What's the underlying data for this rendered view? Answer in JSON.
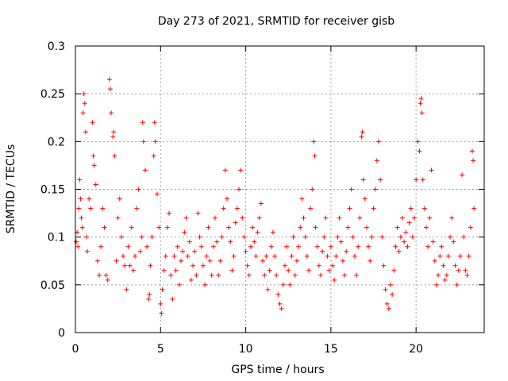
{
  "chart_data": {
    "type": "scatter",
    "title": "Day 273 of 2021, SRMTID for receiver gisb",
    "xlabel": "GPS time / hours",
    "ylabel": "SRMTID / TECUs",
    "xlim": [
      0,
      24
    ],
    "ylim": [
      0,
      0.3
    ],
    "x_ticks": [
      0,
      5,
      10,
      15,
      20
    ],
    "x_tick_labels": [
      "0",
      "5",
      "10",
      "15",
      "20"
    ],
    "y_ticks": [
      0,
      0.05,
      0.1,
      0.15,
      0.2,
      0.25,
      0.3
    ],
    "y_tick_labels": [
      "0",
      "0.05",
      "0.1",
      "0.15",
      "0.2",
      "0.25",
      "0.3"
    ],
    "grid": true,
    "marker": "+",
    "colors": {
      "series": "#ff0000",
      "grid": "#a0a0a0",
      "axis": "#000000"
    },
    "series": [
      {
        "name": "SRMTID",
        "points": [
          [
            0.05,
            0.095
          ],
          [
            0.1,
            0.105
          ],
          [
            0.15,
            0.09
          ],
          [
            0.2,
            0.13
          ],
          [
            0.25,
            0.16
          ],
          [
            0.3,
            0.14
          ],
          [
            0.35,
            0.12
          ],
          [
            0.4,
            0.11
          ],
          [
            0.45,
            0.23
          ],
          [
            0.5,
            0.25
          ],
          [
            0.55,
            0.24
          ],
          [
            0.6,
            0.21
          ],
          [
            0.65,
            0.1
          ],
          [
            0.7,
            0.085
          ],
          [
            0.8,
            0.14
          ],
          [
            0.9,
            0.13
          ],
          [
            1.0,
            0.22
          ],
          [
            1.05,
            0.185
          ],
          [
            1.1,
            0.175
          ],
          [
            1.2,
            0.155
          ],
          [
            1.3,
            0.075
          ],
          [
            1.4,
            0.06
          ],
          [
            1.5,
            0.09
          ],
          [
            1.6,
            0.13
          ],
          [
            1.7,
            0.11
          ],
          [
            1.8,
            0.06
          ],
          [
            1.9,
            0.055
          ],
          [
            2.0,
            0.265
          ],
          [
            2.05,
            0.255
          ],
          [
            2.1,
            0.23
          ],
          [
            2.2,
            0.205
          ],
          [
            2.25,
            0.21
          ],
          [
            2.3,
            0.185
          ],
          [
            2.4,
            0.075
          ],
          [
            2.5,
            0.12
          ],
          [
            2.6,
            0.14
          ],
          [
            2.7,
            0.1
          ],
          [
            2.8,
            0.08
          ],
          [
            2.9,
            0.07
          ],
          [
            3.0,
            0.045
          ],
          [
            3.1,
            0.09
          ],
          [
            3.2,
            0.07
          ],
          [
            3.3,
            0.11
          ],
          [
            3.4,
            0.065
          ],
          [
            3.5,
            0.08
          ],
          [
            3.6,
            0.13
          ],
          [
            3.7,
            0.15
          ],
          [
            3.8,
            0.085
          ],
          [
            3.9,
            0.1
          ],
          [
            3.95,
            0.22
          ],
          [
            4.0,
            0.2
          ],
          [
            4.1,
            0.17
          ],
          [
            4.2,
            0.09
          ],
          [
            4.3,
            0.035
          ],
          [
            4.35,
            0.04
          ],
          [
            4.4,
            0.07
          ],
          [
            4.5,
            0.1
          ],
          [
            4.6,
            0.185
          ],
          [
            4.65,
            0.22
          ],
          [
            4.7,
            0.2
          ],
          [
            4.8,
            0.145
          ],
          [
            4.9,
            0.11
          ],
          [
            5.0,
            0.03
          ],
          [
            5.05,
            0.02
          ],
          [
            5.1,
            0.045
          ],
          [
            5.2,
            0.065
          ],
          [
            5.3,
            0.08
          ],
          [
            5.4,
            0.11
          ],
          [
            5.5,
            0.125
          ],
          [
            5.6,
            0.06
          ],
          [
            5.7,
            0.035
          ],
          [
            5.8,
            0.08
          ],
          [
            5.9,
            0.065
          ],
          [
            6.0,
            0.09
          ],
          [
            6.1,
            0.05
          ],
          [
            6.2,
            0.075
          ],
          [
            6.3,
            0.085
          ],
          [
            6.4,
            0.105
          ],
          [
            6.5,
            0.12
          ],
          [
            6.6,
            0.08
          ],
          [
            6.7,
            0.095
          ],
          [
            6.8,
            0.055
          ],
          [
            6.9,
            0.07
          ],
          [
            7.0,
            0.085
          ],
          [
            7.1,
            0.06
          ],
          [
            7.2,
            0.125
          ],
          [
            7.3,
            0.1
          ],
          [
            7.4,
            0.09
          ],
          [
            7.5,
            0.07
          ],
          [
            7.6,
            0.05
          ],
          [
            7.7,
            0.08
          ],
          [
            7.8,
            0.11
          ],
          [
            7.9,
            0.075
          ],
          [
            8.0,
            0.06
          ],
          [
            8.1,
            0.09
          ],
          [
            8.2,
            0.12
          ],
          [
            8.3,
            0.095
          ],
          [
            8.4,
            0.06
          ],
          [
            8.5,
            0.075
          ],
          [
            8.6,
            0.1
          ],
          [
            8.7,
            0.13
          ],
          [
            8.8,
            0.17
          ],
          [
            8.9,
            0.14
          ],
          [
            9.0,
            0.11
          ],
          [
            9.1,
            0.095
          ],
          [
            9.2,
            0.065
          ],
          [
            9.3,
            0.08
          ],
          [
            9.4,
            0.115
          ],
          [
            9.5,
            0.13
          ],
          [
            9.6,
            0.15
          ],
          [
            9.7,
            0.17
          ],
          [
            9.8,
            0.12
          ],
          [
            9.9,
            0.1
          ],
          [
            10.0,
            0.085
          ],
          [
            10.1,
            0.07
          ],
          [
            10.2,
            0.06
          ],
          [
            10.3,
            0.09
          ],
          [
            10.4,
            0.11
          ],
          [
            10.5,
            0.095
          ],
          [
            10.6,
            0.08
          ],
          [
            10.7,
            0.105
          ],
          [
            10.8,
            0.12
          ],
          [
            10.9,
            0.135
          ],
          [
            11.0,
            0.075
          ],
          [
            11.1,
            0.06
          ],
          [
            11.2,
            0.08
          ],
          [
            11.3,
            0.045
          ],
          [
            11.4,
            0.065
          ],
          [
            11.5,
            0.09
          ],
          [
            11.6,
            0.105
          ],
          [
            11.7,
            0.08
          ],
          [
            11.8,
            0.06
          ],
          [
            11.9,
            0.04
          ],
          [
            12.0,
            0.03
          ],
          [
            12.1,
            0.025
          ],
          [
            12.2,
            0.05
          ],
          [
            12.3,
            0.07
          ],
          [
            12.4,
            0.09
          ],
          [
            12.5,
            0.065
          ],
          [
            12.6,
            0.05
          ],
          [
            12.7,
            0.08
          ],
          [
            12.8,
            0.1
          ],
          [
            12.9,
            0.06
          ],
          [
            13.0,
            0.075
          ],
          [
            13.1,
            0.09
          ],
          [
            13.2,
            0.11
          ],
          [
            13.3,
            0.14
          ],
          [
            13.4,
            0.12
          ],
          [
            13.5,
            0.1
          ],
          [
            13.6,
            0.08
          ],
          [
            13.7,
            0.065
          ],
          [
            13.8,
            0.13
          ],
          [
            13.9,
            0.15
          ],
          [
            14.0,
            0.2
          ],
          [
            14.05,
            0.185
          ],
          [
            14.1,
            0.11
          ],
          [
            14.2,
            0.09
          ],
          [
            14.3,
            0.07
          ],
          [
            14.4,
            0.06
          ],
          [
            14.5,
            0.085
          ],
          [
            14.6,
            0.1
          ],
          [
            14.7,
            0.12
          ],
          [
            14.8,
            0.08
          ],
          [
            14.9,
            0.065
          ],
          [
            15.0,
            0.09
          ],
          [
            15.1,
            0.07
          ],
          [
            15.2,
            0.055
          ],
          [
            15.3,
            0.08
          ],
          [
            15.4,
            0.1
          ],
          [
            15.5,
            0.12
          ],
          [
            15.6,
            0.095
          ],
          [
            15.7,
            0.075
          ],
          [
            15.8,
            0.06
          ],
          [
            15.9,
            0.085
          ],
          [
            16.0,
            0.11
          ],
          [
            16.1,
            0.13
          ],
          [
            16.2,
            0.15
          ],
          [
            16.3,
            0.1
          ],
          [
            16.4,
            0.08
          ],
          [
            16.5,
            0.06
          ],
          [
            16.6,
            0.09
          ],
          [
            16.7,
            0.12
          ],
          [
            16.8,
            0.205
          ],
          [
            16.85,
            0.21
          ],
          [
            16.9,
            0.16
          ],
          [
            17.0,
            0.14
          ],
          [
            17.1,
            0.11
          ],
          [
            17.2,
            0.09
          ],
          [
            17.3,
            0.075
          ],
          [
            17.4,
            0.1
          ],
          [
            17.5,
            0.13
          ],
          [
            17.6,
            0.15
          ],
          [
            17.7,
            0.18
          ],
          [
            17.8,
            0.2
          ],
          [
            17.9,
            0.16
          ],
          [
            18.0,
            0.1
          ],
          [
            18.1,
            0.07
          ],
          [
            18.2,
            0.045
          ],
          [
            18.3,
            0.03
          ],
          [
            18.4,
            0.025
          ],
          [
            18.5,
            0.05
          ],
          [
            18.6,
            0.04
          ],
          [
            18.7,
            0.065
          ],
          [
            18.8,
            0.09
          ],
          [
            18.9,
            0.11
          ],
          [
            19.0,
            0.085
          ],
          [
            19.1,
            0.1
          ],
          [
            19.2,
            0.12
          ],
          [
            19.3,
            0.095
          ],
          [
            19.4,
            0.105
          ],
          [
            19.5,
            0.09
          ],
          [
            19.6,
            0.115
          ],
          [
            19.7,
            0.13
          ],
          [
            19.8,
            0.1
          ],
          [
            19.9,
            0.12
          ],
          [
            20.0,
            0.16
          ],
          [
            20.1,
            0.2
          ],
          [
            20.2,
            0.19
          ],
          [
            20.25,
            0.24
          ],
          [
            20.3,
            0.245
          ],
          [
            20.35,
            0.23
          ],
          [
            20.4,
            0.16
          ],
          [
            20.5,
            0.13
          ],
          [
            20.6,
            0.11
          ],
          [
            20.7,
            0.09
          ],
          [
            20.8,
            0.12
          ],
          [
            20.9,
            0.17
          ],
          [
            21.0,
            0.095
          ],
          [
            21.1,
            0.075
          ],
          [
            21.2,
            0.05
          ],
          [
            21.3,
            0.06
          ],
          [
            21.4,
            0.08
          ],
          [
            21.5,
            0.09
          ],
          [
            21.6,
            0.07
          ],
          [
            21.7,
            0.055
          ],
          [
            21.8,
            0.06
          ],
          [
            21.9,
            0.08
          ],
          [
            22.0,
            0.1
          ],
          [
            22.1,
            0.12
          ],
          [
            22.2,
            0.095
          ],
          [
            22.3,
            0.07
          ],
          [
            22.4,
            0.05
          ],
          [
            22.5,
            0.065
          ],
          [
            22.6,
            0.08
          ],
          [
            22.7,
            0.165
          ],
          [
            22.8,
            0.1
          ],
          [
            22.9,
            0.065
          ],
          [
            23.0,
            0.06
          ],
          [
            23.1,
            0.08
          ],
          [
            23.2,
            0.11
          ],
          [
            23.3,
            0.19
          ],
          [
            23.35,
            0.18
          ],
          [
            23.4,
            0.13
          ]
        ]
      }
    ]
  }
}
